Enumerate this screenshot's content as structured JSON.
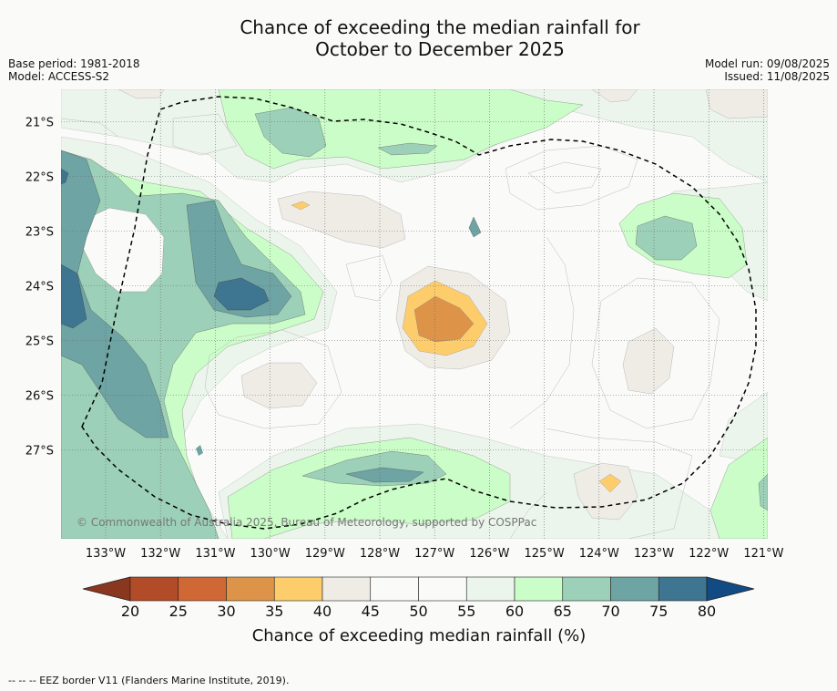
{
  "title": {
    "line1": "Chance of exceeding the median rainfall for",
    "line2": "October to December 2025"
  },
  "meta_left": {
    "base_period": "Base period: 1981-2018",
    "model": "Model: ACCESS-S2"
  },
  "meta_right": {
    "model_run": "Model run: 09/08/2025",
    "issued": "Issued: 11/08/2025"
  },
  "map": {
    "lat_labels": [
      "21°S",
      "22°S",
      "23°S",
      "24°S",
      "25°S",
      "26°S",
      "27°S"
    ],
    "lon_labels": [
      "133°W",
      "132°W",
      "131°W",
      "130°W",
      "129°W",
      "128°W",
      "127°W",
      "126°W",
      "125°W",
      "124°W",
      "123°W",
      "122°W",
      "121°W"
    ],
    "credit": "© Commonwealth of Australia 2025, Bureau of Meteorology, supported by COSPPac",
    "border_color": "#000000"
  },
  "colorbar": {
    "ticks": [
      "20",
      "25",
      "30",
      "35",
      "40",
      "45",
      "50",
      "55",
      "60",
      "65",
      "70",
      "75",
      "80"
    ],
    "colors": [
      "#8a3720",
      "#b24c28",
      "#cf6834",
      "#de9448",
      "#fdcd6c",
      "#efece6",
      "#fafbf9",
      "#fafbf9",
      "#ebf5eb",
      "#cbfdc8",
      "#9dd0b8",
      "#6ea4a4",
      "#3e7591",
      "#124b83"
    ],
    "label": "Chance of exceeding median rainfall (%)"
  },
  "footer": "--  --  -- EEZ border V11 (Flanders Marine Institute, 2019)."
}
